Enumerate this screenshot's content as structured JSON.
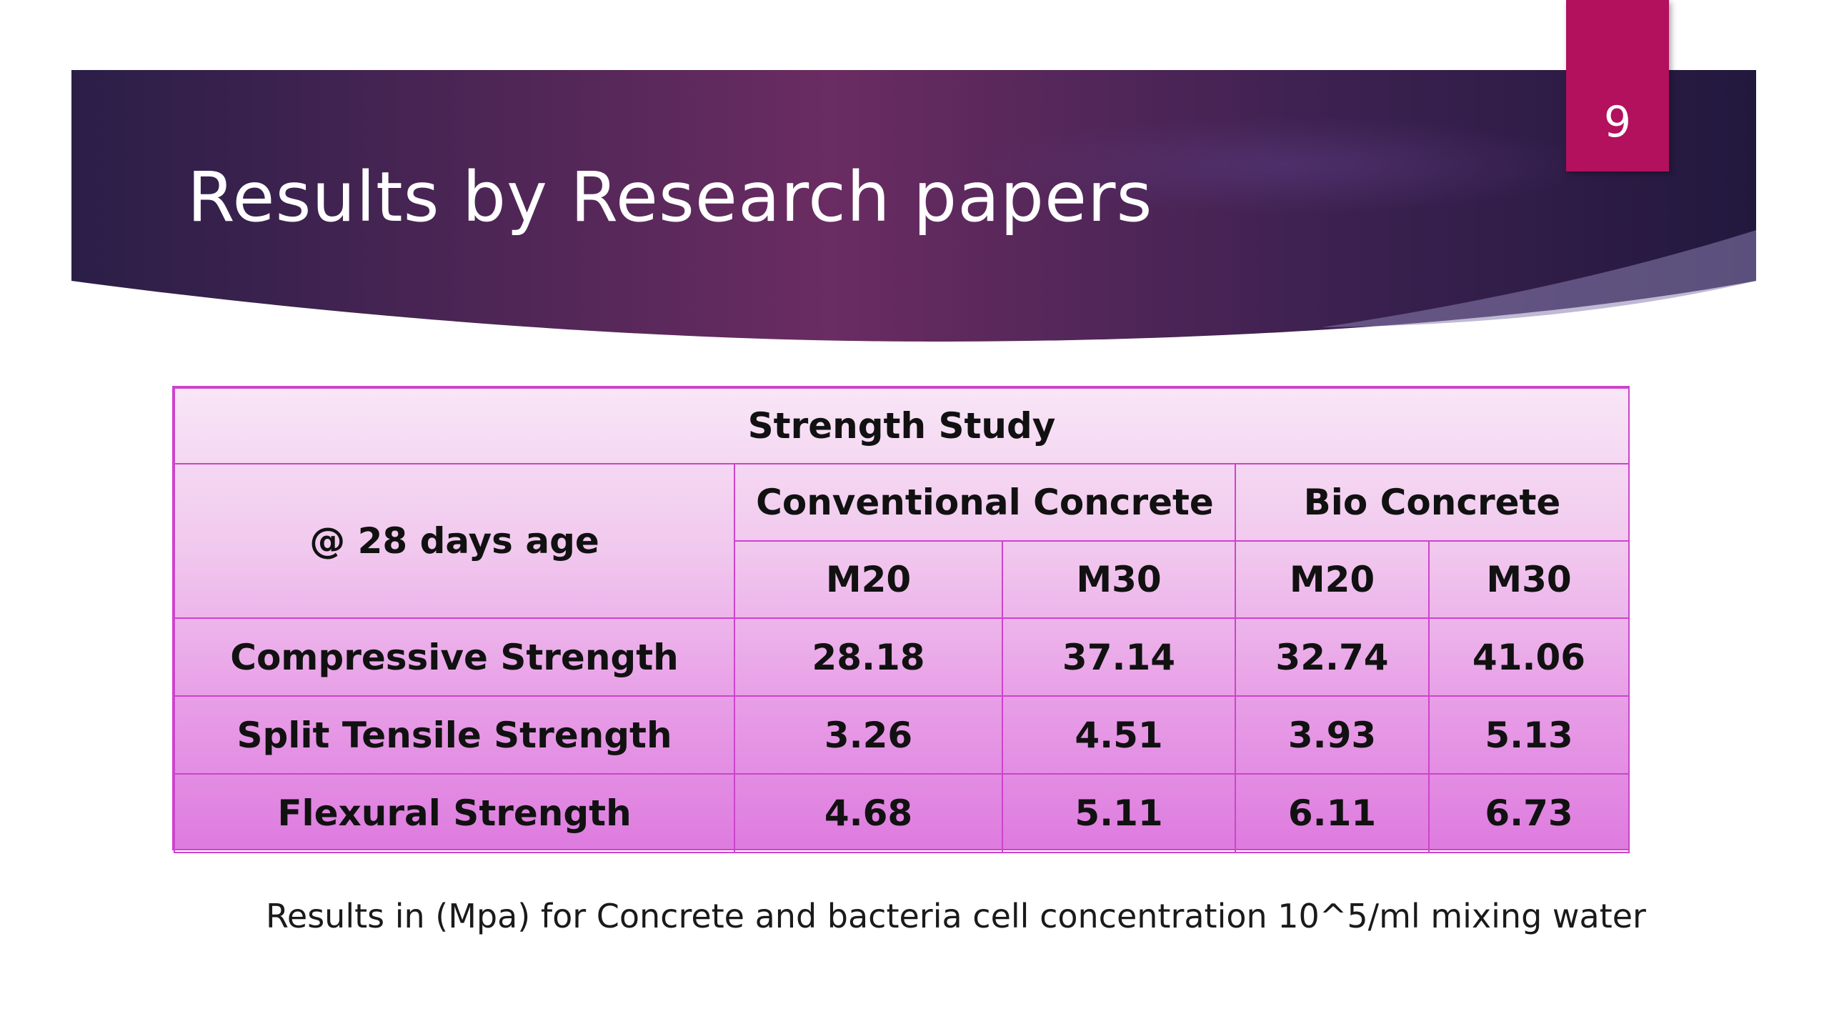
{
  "slide": {
    "number": "9",
    "title": "Results by Research papers"
  },
  "table": {
    "caption": "Strength Study",
    "corner_label": "@ 28 days age",
    "groups": [
      "Conventional Concrete",
      "Bio Concrete"
    ],
    "grades": [
      "M20",
      "M30",
      "M20",
      "M30"
    ],
    "rows": [
      {
        "label": "Compressive Strength",
        "values": [
          "28.18",
          "37.14",
          "32.74",
          "41.06"
        ]
      },
      {
        "label": "Split Tensile Strength",
        "values": [
          "3.26",
          "4.51",
          "3.93",
          "5.13"
        ]
      },
      {
        "label": "Flexural Strength",
        "values": [
          "4.68",
          "5.11",
          "6.11",
          "6.73"
        ]
      }
    ]
  },
  "footnote": "Results in (Mpa) for Concrete and bacteria cell concentration 10^5/ml mixing water",
  "colors": {
    "banner_dark": "#2b1f4a",
    "banner_mid": "#6b2d63",
    "accent_tab": "#b3105e",
    "table_border": "#cc44cc",
    "table_top": "#f8e6f6",
    "table_bottom": "#de7bdf"
  }
}
